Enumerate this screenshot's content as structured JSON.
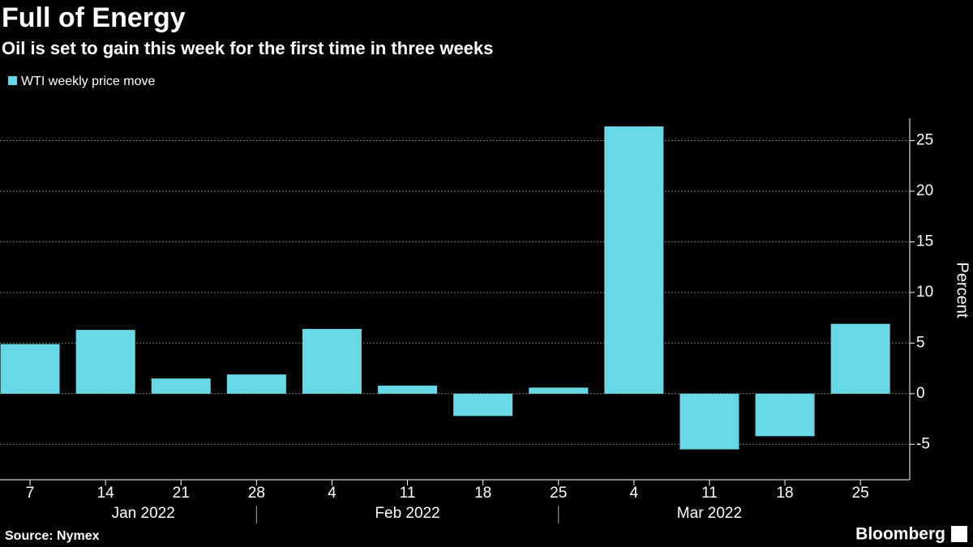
{
  "chart_data": {
    "type": "bar",
    "title": "Full of Energy",
    "subtitle": "Oil is set to gain this week for the first time in three weeks",
    "legend": "WTI weekly price move",
    "color": "#67d9e6",
    "category_groups": [
      {
        "label": "Jan 2022",
        "categories": [
          "7",
          "14",
          "21",
          "28"
        ]
      },
      {
        "label": "Feb 2022",
        "categories": [
          "4",
          "11",
          "18",
          "25"
        ]
      },
      {
        "label": "Mar 2022",
        "categories": [
          "4",
          "11",
          "18",
          "25"
        ]
      }
    ],
    "values": [
      4.9,
      6.3,
      1.5,
      1.9,
      6.4,
      0.8,
      -2.2,
      0.6,
      26.4,
      -5.5,
      -4.2,
      6.9
    ],
    "ylim": [
      -8.5,
      27.2
    ],
    "yticks": [
      -5,
      0,
      5,
      10,
      15,
      20,
      25
    ],
    "ylabel": "Percent",
    "grid": true,
    "source": "Source: Nymex",
    "brand": "Bloomberg"
  }
}
